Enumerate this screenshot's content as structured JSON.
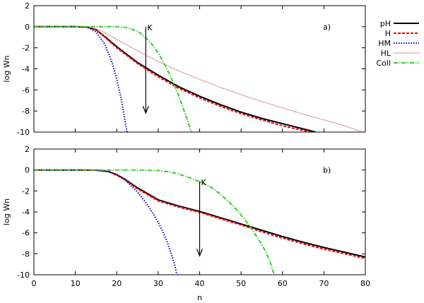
{
  "legend": {
    "placement": "top-right",
    "entries": [
      {
        "label": "pH",
        "color": "#000000",
        "dash": "solid"
      },
      {
        "label": "H",
        "color": "#ff0000",
        "dash": "dashed"
      },
      {
        "label": "HM",
        "color": "#0000cc",
        "dash": "dotted"
      },
      {
        "label": "HL",
        "color": "#b03030",
        "dash": "dotted-fine"
      },
      {
        "label": "Coll",
        "color": "#33cc33",
        "dash": "dash-dot"
      }
    ]
  },
  "chart_data": [
    {
      "type": "line",
      "panel_label": "a)",
      "annotation": {
        "text": "K",
        "x": 27,
        "y_from": 0,
        "y_to": -8.2
      },
      "xlabel": "",
      "ylabel": "log Wn",
      "xlim": [
        0,
        80
      ],
      "ylim": [
        -10,
        2
      ],
      "xticks": [],
      "yticks": [
        2,
        0,
        -2,
        -4,
        -6,
        -8,
        -10
      ],
      "grid": false,
      "series": [
        {
          "name": "pH",
          "color": "#000000",
          "dash": "solid",
          "x": [
            0,
            10,
            13,
            15,
            17,
            20,
            25,
            30,
            35,
            40,
            45,
            50,
            55,
            60,
            65,
            68
          ],
          "y": [
            0,
            0,
            -0.05,
            -0.3,
            -0.9,
            -1.9,
            -3.4,
            -4.6,
            -5.7,
            -6.6,
            -7.4,
            -8.1,
            -8.7,
            -9.2,
            -9.7,
            -10
          ]
        },
        {
          "name": "H",
          "color": "#ff0000",
          "dash": "dashed",
          "x": [
            0,
            10,
            13,
            15,
            17,
            20,
            25,
            30,
            35,
            40,
            45,
            50,
            55,
            60,
            65,
            67
          ],
          "y": [
            0,
            0,
            -0.05,
            -0.3,
            -0.95,
            -2.0,
            -3.5,
            -4.75,
            -5.85,
            -6.75,
            -7.55,
            -8.25,
            -8.85,
            -9.4,
            -9.85,
            -10
          ]
        },
        {
          "name": "HM",
          "color": "#0000cc",
          "dash": "dotted",
          "x": [
            0,
            10,
            13,
            15,
            17,
            18,
            19,
            20,
            21,
            21.5,
            22,
            22.5
          ],
          "y": [
            0,
            0,
            -0.05,
            -0.5,
            -1.6,
            -2.5,
            -3.6,
            -5.0,
            -6.7,
            -7.8,
            -9.0,
            -10
          ]
        },
        {
          "name": "HL",
          "color": "#b03030",
          "dash": "dotted-fine",
          "x": [
            0,
            10,
            13,
            15,
            17,
            20,
            25,
            30,
            35,
            40,
            45,
            50,
            55,
            60,
            65,
            70,
            75,
            79
          ],
          "y": [
            0,
            0,
            -0.02,
            -0.2,
            -0.55,
            -1.2,
            -2.3,
            -3.3,
            -4.2,
            -5.0,
            -5.75,
            -6.45,
            -7.1,
            -7.7,
            -8.3,
            -8.85,
            -9.4,
            -9.95
          ]
        },
        {
          "name": "Coll",
          "color": "#33cc33",
          "dash": "dash-dot",
          "x": [
            0,
            10,
            20,
            22,
            25,
            28,
            30,
            32,
            34,
            35,
            36,
            37,
            38
          ],
          "y": [
            0,
            0,
            0,
            -0.05,
            -0.4,
            -1.4,
            -2.5,
            -3.9,
            -5.6,
            -6.6,
            -7.7,
            -8.8,
            -10
          ]
        }
      ]
    },
    {
      "type": "line",
      "panel_label": "b)",
      "annotation": {
        "text": "K",
        "x": 40,
        "y_from": -1.1,
        "y_to": -8.2
      },
      "xlabel": "n",
      "ylabel": "log Wn",
      "xlim": [
        0,
        80
      ],
      "ylim": [
        -10,
        2
      ],
      "xticks": [
        0,
        10,
        20,
        30,
        40,
        50,
        60,
        70,
        80
      ],
      "yticks": [
        2,
        0,
        -2,
        -4,
        -6,
        -8,
        -10
      ],
      "grid": false,
      "series": [
        {
          "name": "pH",
          "color": "#000000",
          "dash": "solid",
          "x": [
            0,
            10,
            15,
            18,
            20,
            22,
            25,
            30,
            35,
            40,
            45,
            50,
            55,
            60,
            65,
            70,
            75,
            80
          ],
          "y": [
            0,
            0,
            -0.02,
            -0.15,
            -0.45,
            -0.9,
            -1.7,
            -2.85,
            -3.45,
            -3.95,
            -4.55,
            -5.15,
            -5.75,
            -6.35,
            -6.9,
            -7.4,
            -7.85,
            -8.3
          ]
        },
        {
          "name": "H",
          "color": "#ff0000",
          "dash": "dashed",
          "x": [
            0,
            10,
            15,
            18,
            20,
            22,
            25,
            30,
            35,
            40,
            45,
            50,
            55,
            60,
            65,
            70,
            75,
            80
          ],
          "y": [
            0,
            0,
            -0.02,
            -0.15,
            -0.5,
            -0.95,
            -1.8,
            -2.95,
            -3.55,
            -4.05,
            -4.65,
            -5.25,
            -5.9,
            -6.5,
            -7.05,
            -7.55,
            -8.0,
            -8.45
          ]
        },
        {
          "name": "HM",
          "color": "#0000cc",
          "dash": "dotted",
          "x": [
            0,
            10,
            15,
            18,
            20,
            22,
            25,
            27,
            29,
            30,
            31,
            32,
            33,
            34,
            34.5
          ],
          "y": [
            0,
            0,
            -0.02,
            -0.15,
            -0.45,
            -0.95,
            -2.1,
            -3.1,
            -4.3,
            -5.0,
            -5.8,
            -6.7,
            -7.8,
            -9.1,
            -10
          ]
        },
        {
          "name": "Coll",
          "color": "#33cc33",
          "dash": "dash-dot",
          "x": [
            0,
            10,
            20,
            25,
            30,
            33,
            35,
            37,
            40,
            43,
            45,
            48,
            50,
            52,
            54,
            56,
            57,
            58
          ],
          "y": [
            0,
            0,
            0,
            0,
            -0.05,
            -0.2,
            -0.4,
            -0.65,
            -1.1,
            -1.7,
            -2.3,
            -3.4,
            -4.3,
            -5.3,
            -6.5,
            -7.8,
            -8.8,
            -10
          ]
        }
      ]
    }
  ]
}
